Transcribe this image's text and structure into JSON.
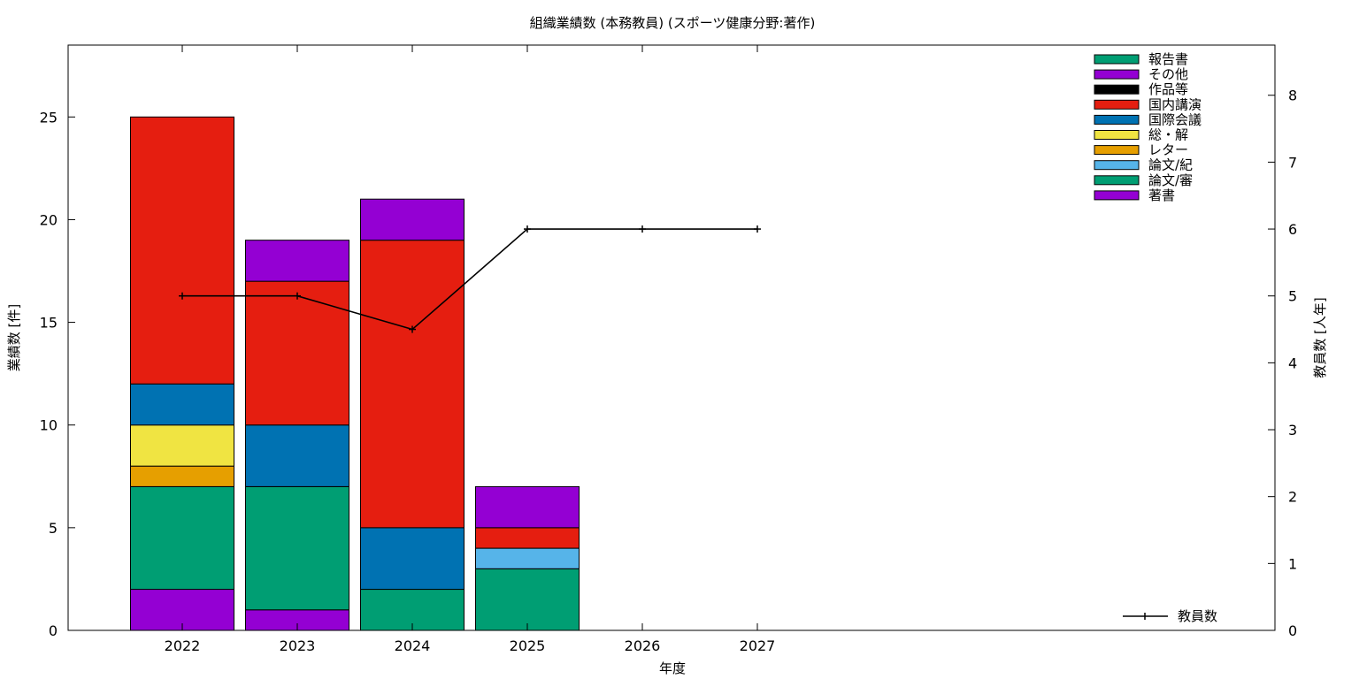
{
  "chart_data": {
    "type": "bar",
    "stacked": true,
    "title": "組織業績数 (本務教員) (スポーツ健康分野:著作)",
    "xlabel": "年度",
    "ylabel": "業績数 [件]",
    "y2label": "教員数 [人年]",
    "categories": [
      "2022",
      "2023",
      "2024",
      "2025",
      "2026",
      "2027"
    ],
    "ylim": [
      0,
      28.5
    ],
    "y2lim": [
      0,
      8.75
    ],
    "yticks": [
      0,
      5,
      10,
      15,
      20,
      25
    ],
    "y2ticks": [
      0,
      1,
      2,
      3,
      4,
      5,
      6,
      7,
      8
    ],
    "legend_position": "top-right",
    "series": [
      {
        "name": "著書",
        "color": "#9400d3",
        "values": [
          2,
          1,
          0,
          0,
          0,
          0
        ]
      },
      {
        "name": "論文/審",
        "color": "#009e73",
        "values": [
          5,
          6,
          2,
          3,
          0,
          0
        ]
      },
      {
        "name": "論文/紀",
        "color": "#56b4e9",
        "values": [
          0,
          0,
          0,
          1,
          0,
          0
        ]
      },
      {
        "name": "レター",
        "color": "#e69f00",
        "values": [
          1,
          0,
          0,
          0,
          0,
          0
        ]
      },
      {
        "name": "総・解",
        "color": "#f0e442",
        "values": [
          2,
          0,
          0,
          0,
          0,
          0
        ]
      },
      {
        "name": "国際会議",
        "color": "#0072b2",
        "values": [
          2,
          3,
          3,
          0,
          0,
          0
        ]
      },
      {
        "name": "国内講演",
        "color": "#e51e10",
        "values": [
          13,
          7,
          14,
          1,
          0,
          0
        ]
      },
      {
        "name": "作品等",
        "color": "#000000",
        "values": [
          0,
          0,
          0,
          0,
          0,
          0
        ]
      },
      {
        "name": "その他",
        "color": "#9400d3",
        "values": [
          0,
          2,
          2,
          2,
          0,
          0
        ]
      },
      {
        "name": "報告書",
        "color": "#009e73",
        "values": [
          0,
          0,
          0,
          0,
          0,
          0
        ]
      }
    ],
    "line_series": {
      "name": "教員数",
      "color": "#000000",
      "axis": "y2",
      "values": [
        5,
        5,
        4.5,
        6,
        6,
        6
      ]
    }
  }
}
